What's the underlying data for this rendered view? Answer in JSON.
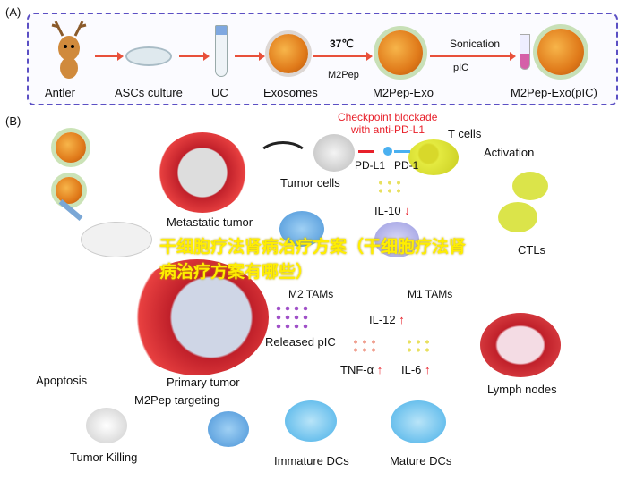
{
  "panel_a": {
    "label": "(A)",
    "steps": [
      "Antler",
      "ASCs culture",
      "UC",
      "Exosomes",
      "M2Pep-Exo",
      "M2Pep-Exo(pIC)"
    ],
    "temperature": "37℃",
    "reagent_m2pep": "M2Pep",
    "sonication": "Sonication",
    "reagent_pic": "pIC"
  },
  "panel_b": {
    "label": "(B)",
    "checkpoint_line1": "Checkpoint blockade",
    "checkpoint_line2": "with anti-PD-L1",
    "t_cells": "T cells",
    "pd_l1": "PD-L1",
    "pd_1": "PD-1",
    "tumor_cells": "Tumor cells",
    "activation": "Activation",
    "metastatic_tumor": "Metastatic tumor",
    "il10": "IL-10",
    "m2_tams": "M2 TAMs",
    "m1_tams": "M1 TAMs",
    "ctls": "CTLs",
    "il12": "IL-12",
    "released_pic": "Released pIC",
    "tnf": "TNF-α",
    "il6": "IL-6",
    "primary_tumor": "Primary tumor",
    "apoptosis": "Apoptosis",
    "m2pep_targeting": "M2Pep targeting",
    "lymph_nodes": "Lymph nodes",
    "tumor_killing": "Tumor Killing",
    "immature_dcs": "Immature DCs",
    "mature_dcs": "Mature DCs",
    "up_arrow": "↑",
    "down_arrow": "↓"
  },
  "watermark": "干细胞疗法肾病治疗方案（干细胞疗法肾病治疗方案有哪些）",
  "colors": {
    "frame": "#5b4fc4",
    "arrow": "#e8503a",
    "checkpoint": "#e8202a",
    "watermark": "#ffee00"
  }
}
